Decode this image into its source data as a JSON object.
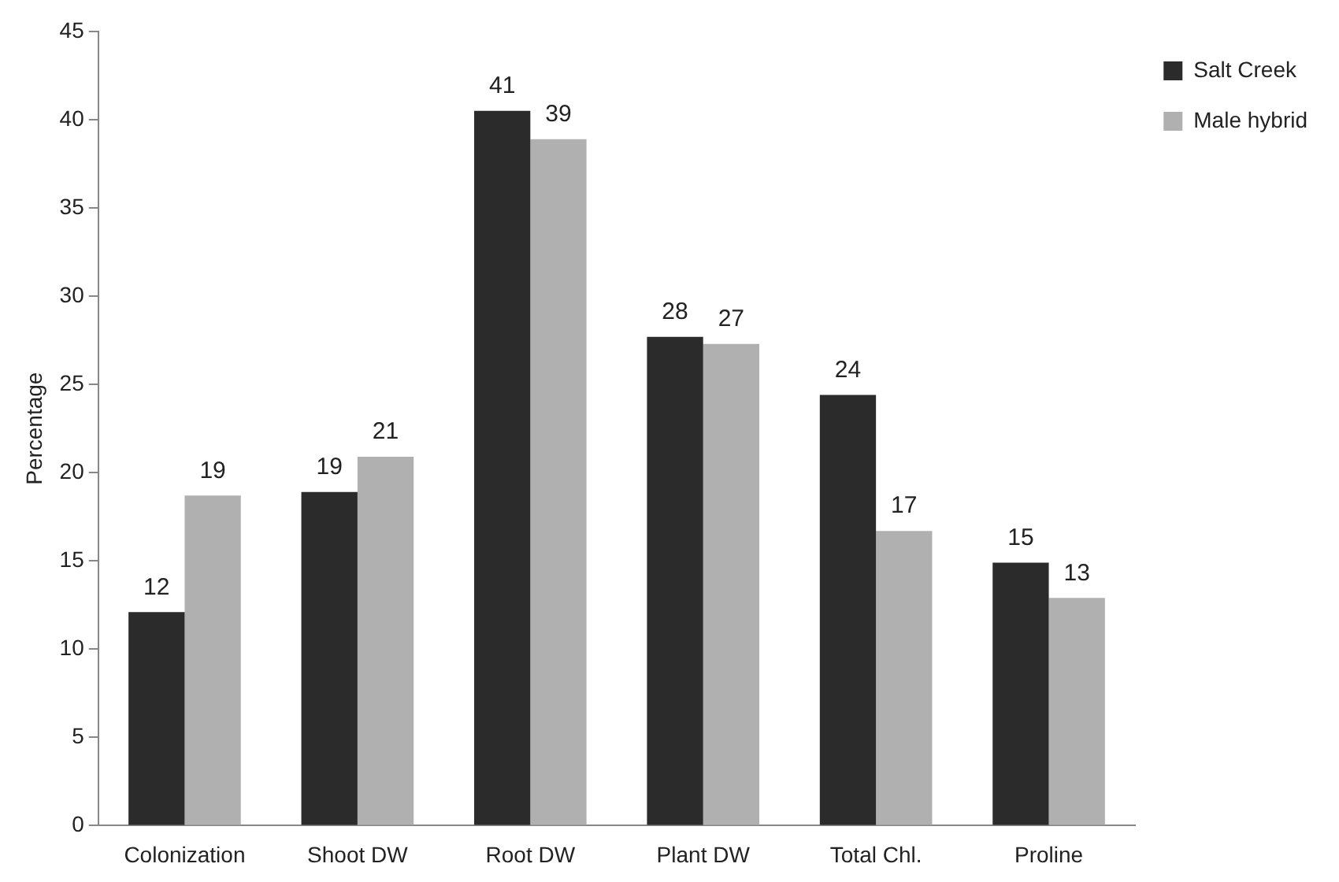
{
  "chart_data": {
    "type": "bar",
    "ylabel": "Percentage",
    "categories": [
      "Colonization",
      "Shoot DW",
      "Root DW",
      "Plant DW",
      "Total Chl.",
      "Proline"
    ],
    "series": [
      {
        "name": "Salt Creek",
        "color": "#2b2b2b",
        "values": [
          12.1,
          18.9,
          40.5,
          27.7,
          24.4,
          14.9
        ],
        "value_labels": [
          "12",
          "19",
          "41",
          "28",
          "24",
          "15"
        ]
      },
      {
        "name": "Male hybrid",
        "color": "#b0b0b0",
        "values": [
          18.7,
          20.9,
          38.9,
          27.3,
          16.7,
          12.9
        ],
        "value_labels": [
          "19",
          "21",
          "39",
          "27",
          "17",
          "13"
        ]
      }
    ],
    "ylim": [
      0,
      45
    ],
    "yticks": [
      0,
      5,
      10,
      15,
      20,
      25,
      30,
      35,
      40,
      45
    ],
    "grid": false,
    "legend": "top right"
  }
}
